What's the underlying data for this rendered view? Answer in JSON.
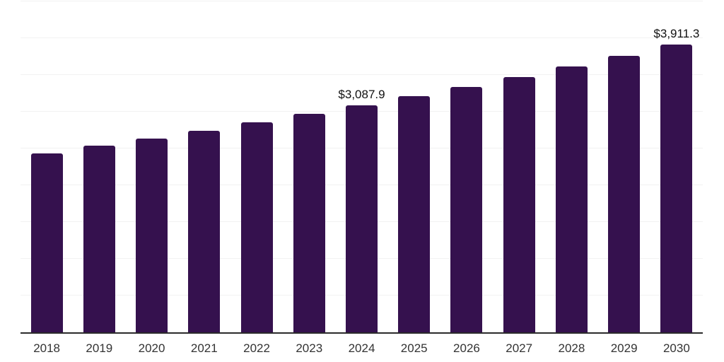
{
  "page": {
    "background": "#ffffff"
  },
  "chart_data": {
    "type": "bar",
    "title": "",
    "xlabel": "",
    "ylabel": "",
    "categories": [
      "2018",
      "2019",
      "2020",
      "2021",
      "2022",
      "2023",
      "2024",
      "2025",
      "2026",
      "2027",
      "2028",
      "2029",
      "2030"
    ],
    "values": [
      2437.6,
      2535.6,
      2637.5,
      2743.6,
      2853.9,
      2968.6,
      3087.9,
      3212.0,
      3341.2,
      3475.5,
      3615.2,
      3760.6,
      3911.3
    ],
    "data_labels": [
      "",
      "",
      "",
      "",
      "",
      "",
      "$3,087.9",
      "",
      "",
      "",
      "",
      "",
      "$3,911.3"
    ],
    "ylim": [
      0,
      4500
    ],
    "grid_step": 500,
    "grid": true,
    "legend_position": "none",
    "colors": {
      "bar": "#35114e",
      "axis": "#2b2b2b",
      "grid": "#f2f2f2",
      "tick_text": "#333333",
      "label_text": "#111111"
    }
  }
}
